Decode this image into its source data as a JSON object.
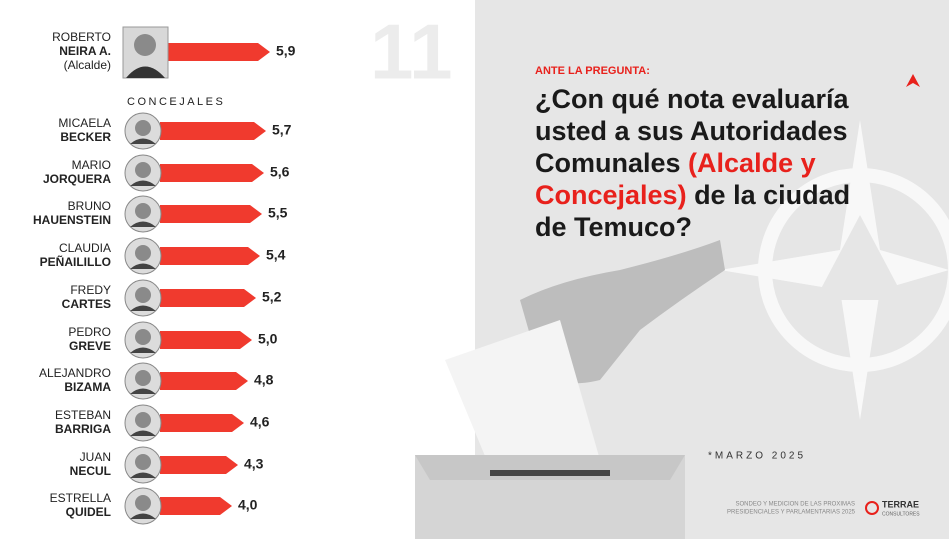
{
  "chart_data": {
    "type": "bar",
    "section_label": "CONCEJALES",
    "categories": [
      [
        "ROBERTO",
        "NEIRA A.",
        "(Alcalde)"
      ],
      [
        "MICAELA",
        "BECKER"
      ],
      [
        "MARIO",
        "JORQUERA"
      ],
      [
        "BRUNO",
        "HAUENSTEIN"
      ],
      [
        "CLAUDIA",
        "PEÑAILILLO"
      ],
      [
        "FREDY",
        "CARTES"
      ],
      [
        "PEDRO",
        "GREVE"
      ],
      [
        "ALEJANDRO",
        "BIZAMA"
      ],
      [
        "ESTEBAN",
        "BARRIGA"
      ],
      [
        "JUAN",
        "NECUL"
      ],
      [
        "ESTRELLA",
        "QUIDEL"
      ]
    ],
    "values": [
      5.9,
      5.7,
      5.6,
      5.5,
      5.4,
      5.2,
      5.0,
      4.8,
      4.6,
      4.3,
      4.0
    ],
    "value_labels": [
      "5,9",
      "5,7",
      "5,6",
      "5,5",
      "5,4",
      "5,2",
      "5,0",
      "4,8",
      "4,6",
      "4,3",
      "4,0"
    ],
    "color": "#f03a2e"
  },
  "panel": {
    "number": "11",
    "kicker": "ANTE LA PREGUNTA:",
    "question": [
      [
        "¿Con qué nota evaluaría"
      ],
      [
        "usted a sus Autoridades"
      ],
      [
        "Comunales ",
        "(Alcalde y"
      ],
      [
        "Concejales)",
        " de la ciudad"
      ],
      [
        "de Temuco?"
      ]
    ],
    "date": "*MARZO 2025",
    "footer": [
      "SONDEO Y MEDICION DE LAS PROXIMAS",
      "PRESIDENCIALES Y PARLAMENTARIAS 2025"
    ],
    "brand": "TERRAE",
    "brand_sub": "CONSULTORES"
  }
}
